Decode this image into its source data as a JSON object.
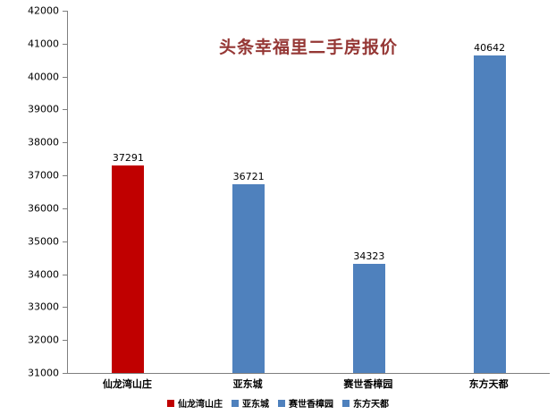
{
  "chart_data": {
    "type": "bar",
    "title": "头条幸福里二手房报价",
    "categories": [
      "仙龙湾山庄",
      "亚东城",
      "赛世香樟园",
      "东方天都"
    ],
    "values": [
      37291,
      36721,
      34323,
      40642
    ],
    "value_labels": [
      "37291",
      "36721",
      "34323",
      "40642"
    ],
    "bar_colors": [
      "#c00000",
      "#4f81bd",
      "#4f81bd",
      "#4f81bd"
    ],
    "xlabel": "",
    "ylabel": "",
    "ylim": [
      31000,
      42000
    ],
    "ytick_step": 1000,
    "ytick_labels": [
      "31000",
      "32000",
      "33000",
      "34000",
      "35000",
      "36000",
      "37000",
      "38000",
      "39000",
      "40000",
      "41000",
      "42000"
    ],
    "grid": false,
    "legend_position": "bottom",
    "legend": [
      {
        "label": "仙龙湾山庄",
        "color": "#c00000"
      },
      {
        "label": "亚东城",
        "color": "#4f81bd"
      },
      {
        "label": "赛世香樟园",
        "color": "#4f81bd"
      },
      {
        "label": "东方天都",
        "color": "#4f81bd"
      }
    ]
  },
  "colors": {
    "title": "#953735",
    "axis": "#7f7f7f",
    "text": "#000000",
    "background": "#ffffff"
  }
}
